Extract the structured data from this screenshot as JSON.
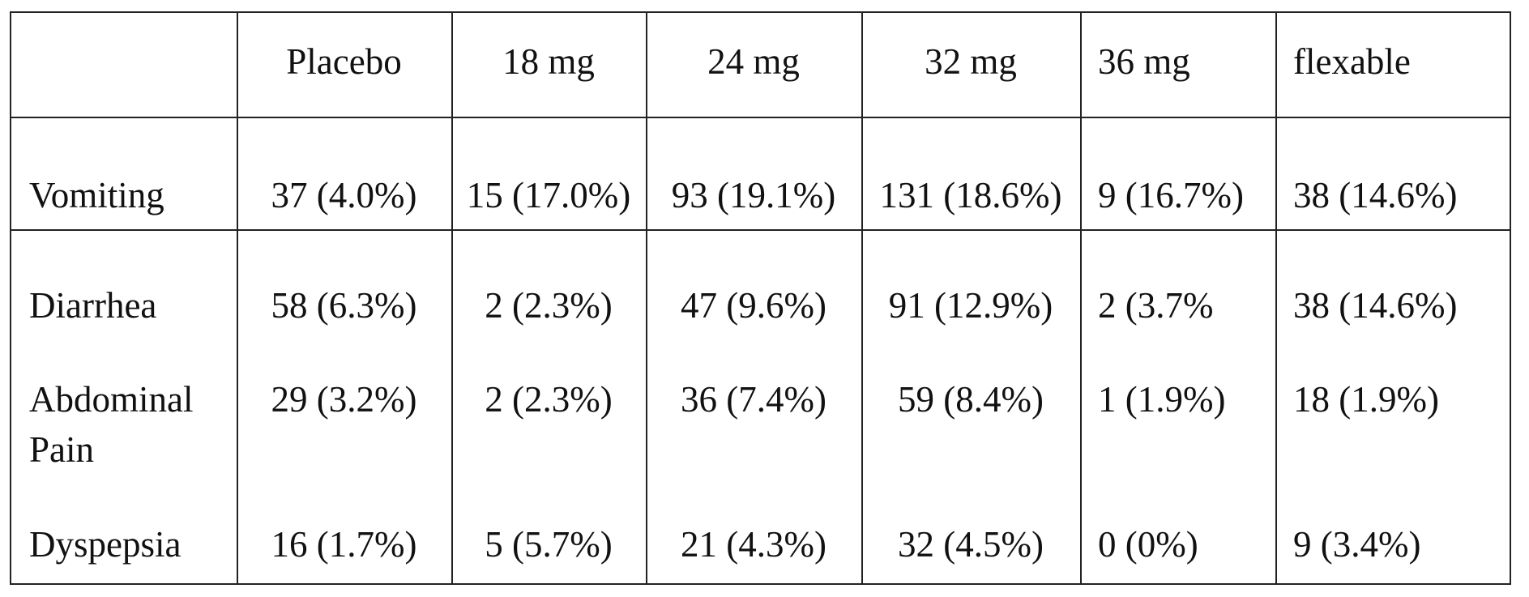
{
  "table": {
    "header": [
      "Placebo",
      "18 mg",
      "24 mg",
      "32 mg",
      "36 mg",
      "flexable"
    ],
    "rows": [
      [
        "Vomiting",
        "37 (4.0%)",
        "15 (17.0%)",
        "93 (19.1%)",
        "131 (18.6%)",
        "9 (16.7%)",
        "38 (14.6%)"
      ],
      [
        "Diarrhea",
        "58 (6.3%)",
        "2 (2.3%)",
        "47 (9.6%)",
        "91 (12.9%)",
        "2 (3.7%",
        "38 (14.6%)"
      ],
      [
        "Abdominal Pain",
        "29 (3.2%)",
        "2 (2.3%)",
        "36 (7.4%)",
        "59 (8.4%)",
        "1 (1.9%)",
        "18 (1.9%)"
      ],
      [
        "Dyspepsia",
        "16 (1.7%)",
        "5 (5.7%)",
        "21 (4.3%)",
        "32 (4.5%)",
        "0 (0%)",
        "9 (3.4%)"
      ]
    ]
  }
}
